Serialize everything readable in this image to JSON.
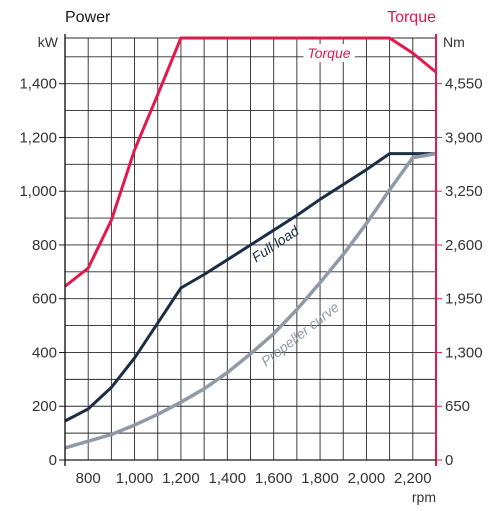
{
  "chart_data": {
    "type": "line",
    "left_header": "Power",
    "right_header": "Torque",
    "left_unit": "kW",
    "right_unit": "Nm",
    "x_unit": "rpm",
    "x_tick_labels": [
      "800",
      "1,000",
      "1,200",
      "1,400",
      "1,600",
      "1,800",
      "2,000",
      "2,200"
    ],
    "x_ticks": [
      800,
      1000,
      1200,
      1400,
      1600,
      1800,
      2000,
      2200
    ],
    "xlim": [
      700,
      2300
    ],
    "left_tick_labels": [
      "0",
      "200",
      "400",
      "600",
      "800",
      "1,000",
      "1,200",
      "1,400"
    ],
    "left_ticks": [
      0,
      200,
      400,
      600,
      800,
      1000,
      1200,
      1400
    ],
    "ylim_left": [
      0,
      1570
    ],
    "right_tick_labels": [
      "0",
      "650",
      "1,300",
      "1,950",
      "2,600",
      "3,250",
      "3,900",
      "4,550"
    ],
    "right_ticks": [
      0,
      650,
      1300,
      1950,
      2600,
      3250,
      3900,
      4550
    ],
    "ylim_right": [
      0,
      5102
    ],
    "grid": true,
    "colors": {
      "power_header": "#1a1a1a",
      "torque_header": "#e3184b",
      "torque": "#e3184b",
      "full_load": "#1b2e45",
      "propeller": "#8f9aa6",
      "grid": "#2a2a2a"
    },
    "series": [
      {
        "name": "Torque",
        "axis": "right",
        "x": [
          700,
          800,
          900,
          1000,
          1100,
          1200,
          1300,
          1400,
          1500,
          1600,
          1700,
          1800,
          1900,
          2000,
          2100,
          2200,
          2300
        ],
        "values": [
          2100,
          2320,
          2900,
          3750,
          4420,
          5102,
          5102,
          5102,
          5102,
          5102,
          5102,
          5102,
          5102,
          5102,
          5102,
          4920,
          4690
        ]
      },
      {
        "name": "Full load",
        "axis": "left",
        "x": [
          700,
          800,
          900,
          1000,
          1100,
          1200,
          1300,
          1400,
          1500,
          1600,
          1700,
          1800,
          1900,
          2000,
          2100,
          2150,
          2300
        ],
        "values": [
          145,
          190,
          270,
          380,
          510,
          640,
          690,
          745,
          800,
          855,
          910,
          970,
          1025,
          1080,
          1140,
          1140,
          1140
        ]
      },
      {
        "name": "Propeller curve",
        "axis": "left",
        "x": [
          700,
          800,
          900,
          1000,
          1100,
          1200,
          1300,
          1400,
          1500,
          1600,
          1700,
          1800,
          1900,
          2000,
          2100,
          2200,
          2300
        ],
        "values": [
          45,
          70,
          95,
          130,
          170,
          215,
          265,
          325,
          395,
          470,
          560,
          660,
          765,
          880,
          1005,
          1125,
          1140
        ]
      }
    ],
    "annotations": {
      "torque_label": "Torque",
      "full_load_label": "Full load",
      "propeller_label": "Propeller curve"
    }
  }
}
